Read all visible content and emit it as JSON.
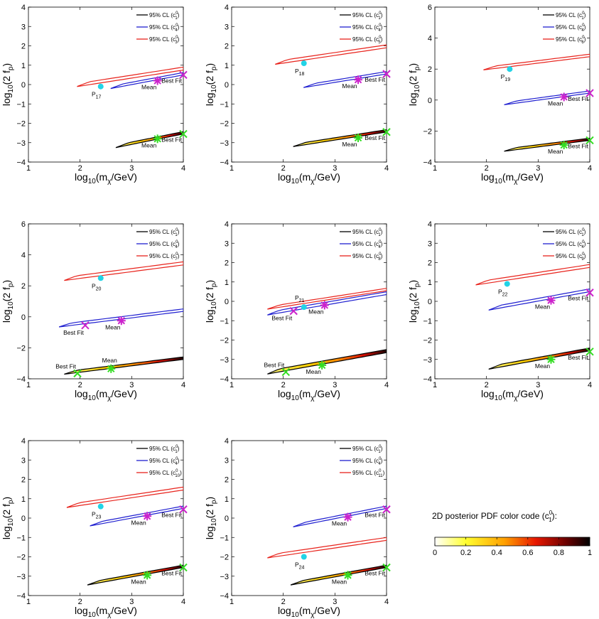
{
  "figure": {
    "colors": {
      "black_contour": "#000000",
      "blue_contour": "#1f1fd0",
      "red_contour": "#e8231c",
      "benchmark_point": "#22d3e6",
      "best_fit_marker": "#cc22cc",
      "mean_marker": "#33dd22"
    },
    "colorbar": {
      "title": "2D posterior PDF color code (c",
      "title_sup": "0",
      "title_sub": "1",
      "title_end": "):",
      "ticks": [
        "0",
        "0.2",
        "0.4",
        "0.6",
        "0.8",
        "1"
      ]
    }
  },
  "chart_data": [
    {
      "type": "contour",
      "xlabel": "log10(m_χ/GeV)",
      "ylabel": "log10(2 f_p)",
      "xlim": [
        1,
        4
      ],
      "ylim": [
        -4,
        4
      ],
      "xticks": [
        "1",
        "2",
        "3",
        "4"
      ],
      "yticks": [
        "-4",
        "-3",
        "-2",
        "-1",
        "0",
        "1",
        "2",
        "3",
        "4"
      ],
      "legend": [
        {
          "label": "95% CL (c",
          "sup": "0",
          "sub": "1",
          "color": "#000000"
        },
        {
          "label": "95% CL (c",
          "sup": "0",
          "sub": "4",
          "color": "#1f1fd0"
        },
        {
          "label": "95% CL (c",
          "sup": "0",
          "sub": "3",
          "color": "#e8231c"
        }
      ],
      "benchmark": {
        "label": "P",
        "sub": "17",
        "x": 2.4,
        "y": -0.1
      },
      "contours": [
        {
          "operator": "c1",
          "x0": 2.7,
          "x1": 4.0,
          "y_start": -3.25,
          "y_end": -2.55,
          "width": 0.12,
          "filled": true,
          "best_fit": {
            "x": 4.0,
            "y": -2.55
          },
          "mean": {
            "x": 3.5,
            "y": -2.8
          }
        },
        {
          "operator": "c4",
          "x0": 2.6,
          "x1": 4.0,
          "y_start": -0.2,
          "y_end": 0.5,
          "width": 0.12,
          "filled": false,
          "best_fit": {
            "x": 4.0,
            "y": 0.5
          },
          "mean": {
            "x": 3.5,
            "y": 0.2
          }
        },
        {
          "operator": "c3",
          "x0": 1.95,
          "x1": 4.0,
          "y_start": -0.1,
          "y_end": 0.75,
          "width": 0.15,
          "filled": false
        }
      ]
    },
    {
      "type": "contour",
      "xlabel": "log10(m_χ/GeV)",
      "ylabel": "log10(2 f_p)",
      "xlim": [
        1,
        4
      ],
      "ylim": [
        -4,
        4
      ],
      "xticks": [
        "1",
        "2",
        "3",
        "4"
      ],
      "yticks": [
        "-4",
        "-3",
        "-2",
        "-1",
        "0",
        "1",
        "2",
        "3",
        "4"
      ],
      "legend": [
        {
          "label": "95% CL (c",
          "sup": "0",
          "sub": "1",
          "color": "#000000"
        },
        {
          "label": "95% CL (c",
          "sup": "0",
          "sub": "4",
          "color": "#1f1fd0"
        },
        {
          "label": "95% CL (c",
          "sup": "0",
          "sub": "5",
          "color": "#e8231c"
        }
      ],
      "benchmark": {
        "label": "P",
        "sub": "18",
        "x": 2.4,
        "y": 1.1
      },
      "contours": [
        {
          "operator": "c1",
          "x0": 2.2,
          "x1": 4.0,
          "y_start": -3.2,
          "y_end": -2.45,
          "width": 0.12,
          "filled": true,
          "best_fit": {
            "x": 4.0,
            "y": -2.45
          },
          "mean": {
            "x": 3.45,
            "y": -2.75
          }
        },
        {
          "operator": "c4",
          "x0": 2.4,
          "x1": 4.0,
          "y_start": -0.15,
          "y_end": 0.55,
          "width": 0.12,
          "filled": false,
          "best_fit": {
            "x": 4.0,
            "y": 0.55
          },
          "mean": {
            "x": 3.45,
            "y": 0.25
          }
        },
        {
          "operator": "c5",
          "x0": 1.85,
          "x1": 4.0,
          "y_start": 1.05,
          "y_end": 1.9,
          "width": 0.15,
          "filled": false
        }
      ]
    },
    {
      "type": "contour",
      "xlabel": "log10(m_χ/GeV)",
      "ylabel": "log10(2 f_p)",
      "xlim": [
        1,
        4
      ],
      "ylim": [
        -4,
        6
      ],
      "xticks": [
        "1",
        "2",
        "3",
        "4"
      ],
      "yticks": [
        "-4",
        "-2",
        "0",
        "2",
        "4",
        "6"
      ],
      "legend": [
        {
          "label": "95% CL (c",
          "sup": "0",
          "sub": "1",
          "color": "#000000"
        },
        {
          "label": "95% CL (c",
          "sup": "0",
          "sub": "4",
          "color": "#1f1fd0"
        },
        {
          "label": "95% CL (c",
          "sup": "0",
          "sub": "6",
          "color": "#e8231c"
        }
      ],
      "benchmark": {
        "label": "P",
        "sub": "19",
        "x": 2.45,
        "y": 2.0
      },
      "contours": [
        {
          "operator": "c1",
          "x0": 2.35,
          "x1": 4.0,
          "y_start": -3.3,
          "y_end": -2.6,
          "width": 0.14,
          "filled": true,
          "best_fit": {
            "x": 4.0,
            "y": -2.6
          },
          "mean": {
            "x": 3.5,
            "y": -2.9
          }
        },
        {
          "operator": "c4",
          "x0": 2.35,
          "x1": 4.0,
          "y_start": -0.3,
          "y_end": 0.45,
          "width": 0.14,
          "filled": false,
          "best_fit": {
            "x": 4.0,
            "y": 0.45
          },
          "mean": {
            "x": 3.5,
            "y": 0.2
          }
        },
        {
          "operator": "c6",
          "x0": 1.95,
          "x1": 4.0,
          "y_start": 1.95,
          "y_end": 2.8,
          "width": 0.16,
          "filled": false
        }
      ]
    },
    {
      "type": "contour",
      "xlabel": "log10(m_χ/GeV)",
      "ylabel": "log10(2 f_p)",
      "xlim": [
        1,
        4
      ],
      "ylim": [
        -4,
        6
      ],
      "xticks": [
        "1",
        "2",
        "3",
        "4"
      ],
      "yticks": [
        "-4",
        "-2",
        "0",
        "2",
        "4",
        "6"
      ],
      "legend": [
        {
          "label": "95% CL (c",
          "sup": "0",
          "sub": "1",
          "color": "#000000"
        },
        {
          "label": "95% CL (c",
          "sup": "0",
          "sub": "4",
          "color": "#1f1fd0"
        },
        {
          "label": "95% CL (c",
          "sup": "0",
          "sub": "7",
          "color": "#e8231c"
        }
      ],
      "benchmark": {
        "label": "P",
        "sub": "20",
        "x": 2.4,
        "y": 2.5
      },
      "contours": [
        {
          "operator": "c1",
          "x0": 1.7,
          "x1": 4.0,
          "y_start": -3.7,
          "y_end": -2.75,
          "width": 0.16,
          "filled": true,
          "best_fit": {
            "x": 1.95,
            "y": -3.65
          },
          "mean": {
            "x": 2.6,
            "y": -3.35
          },
          "bf_label_pos": "upper-left",
          "mean_label_pos": "above"
        },
        {
          "operator": "c4",
          "x0": 1.6,
          "x1": 4.0,
          "y_start": -0.65,
          "y_end": 0.35,
          "width": 0.16,
          "filled": false,
          "best_fit": {
            "x": 2.1,
            "y": -0.55
          },
          "mean": {
            "x": 2.8,
            "y": -0.25
          },
          "bf_label_pos": "below-left",
          "mean_label_pos": "below"
        },
        {
          "operator": "c7",
          "x0": 1.7,
          "x1": 4.0,
          "y_start": 2.35,
          "y_end": 3.35,
          "width": 0.2,
          "filled": false
        }
      ]
    },
    {
      "type": "contour",
      "xlabel": "log10(m_χ/GeV)",
      "ylabel": "log10(2 f_p)",
      "xlim": [
        1,
        4
      ],
      "ylim": [
        -4,
        4
      ],
      "xticks": [
        "1",
        "2",
        "3",
        "4"
      ],
      "yticks": [
        "-4",
        "-3",
        "-2",
        "-1",
        "0",
        "1",
        "2",
        "3",
        "4"
      ],
      "legend": [
        {
          "label": "95% CL (c",
          "sup": "0",
          "sub": "1",
          "color": "#000000"
        },
        {
          "label": "95% CL (c",
          "sup": "0",
          "sub": "4",
          "color": "#1f1fd0"
        },
        {
          "label": "95% CL (c",
          "sup": "0",
          "sub": "8",
          "color": "#e8231c"
        }
      ],
      "benchmark": {
        "label": "P",
        "sub": "21",
        "x": 2.4,
        "y": -0.3,
        "label_above": true
      },
      "contours": [
        {
          "operator": "c1",
          "x0": 1.7,
          "x1": 4.0,
          "y_start": -3.75,
          "y_end": -2.65,
          "width": 0.16,
          "filled": true,
          "best_fit": {
            "x": 2.05,
            "y": -3.65
          },
          "mean": {
            "x": 2.75,
            "y": -3.3
          },
          "bf_label_pos": "upper-left",
          "mean_label_pos": "below"
        },
        {
          "operator": "c4",
          "x0": 1.7,
          "x1": 4.0,
          "y_start": -0.7,
          "y_end": 0.35,
          "width": 0.14,
          "filled": false,
          "best_fit": {
            "x": 2.2,
            "y": -0.5
          },
          "mean": {
            "x": 2.8,
            "y": -0.2
          },
          "bf_label_pos": "below-left",
          "mean_label_pos": "below"
        },
        {
          "operator": "c8",
          "x0": 1.7,
          "x1": 4.0,
          "y_start": -0.4,
          "y_end": 0.55,
          "width": 0.12,
          "filled": false
        }
      ]
    },
    {
      "type": "contour",
      "xlabel": "log10(m_χ/GeV)",
      "ylabel": "log10(2 f_p)",
      "xlim": [
        1,
        4
      ],
      "ylim": [
        -4,
        4
      ],
      "xticks": [
        "1",
        "2",
        "3",
        "4"
      ],
      "yticks": [
        "-4",
        "-3",
        "-2",
        "-1",
        "0",
        "1",
        "2",
        "3",
        "4"
      ],
      "legend": [
        {
          "label": "95% CL (c",
          "sup": "0",
          "sub": "1",
          "color": "#000000"
        },
        {
          "label": "95% CL (c",
          "sup": "0",
          "sub": "4",
          "color": "#1f1fd0"
        },
        {
          "label": "95% CL (c",
          "sup": "0",
          "sub": "9",
          "color": "#e8231c"
        }
      ],
      "benchmark": {
        "label": "P",
        "sub": "22",
        "x": 2.4,
        "y": 0.9
      },
      "contours": [
        {
          "operator": "c1",
          "x0": 2.05,
          "x1": 4.0,
          "y_start": -3.5,
          "y_end": -2.55,
          "width": 0.14,
          "filled": true,
          "best_fit": {
            "x": 4.0,
            "y": -2.6
          },
          "mean": {
            "x": 3.25,
            "y": -3.0
          }
        },
        {
          "operator": "c4",
          "x0": 2.05,
          "x1": 4.0,
          "y_start": -0.45,
          "y_end": 0.5,
          "width": 0.14,
          "filled": false,
          "best_fit": {
            "x": 4.0,
            "y": 0.45
          },
          "mean": {
            "x": 3.25,
            "y": 0.05
          }
        },
        {
          "operator": "c9",
          "x0": 1.8,
          "x1": 4.0,
          "y_start": 0.85,
          "y_end": 1.75,
          "width": 0.15,
          "filled": false
        }
      ]
    },
    {
      "type": "contour",
      "xlabel": "log10(m_χ/GeV)",
      "ylabel": "log10(2 f_p)",
      "xlim": [
        1,
        4
      ],
      "ylim": [
        -4,
        4
      ],
      "xticks": [
        "1",
        "2",
        "3",
        "4"
      ],
      "yticks": [
        "-4",
        "-3",
        "-2",
        "-1",
        "0",
        "1",
        "2",
        "3",
        "4"
      ],
      "legend": [
        {
          "label": "95% CL (c",
          "sup": "0",
          "sub": "1",
          "color": "#000000"
        },
        {
          "label": "95% CL (c",
          "sup": "0",
          "sub": "4",
          "color": "#1f1fd0"
        },
        {
          "label": "95% CL (c",
          "sup": "0",
          "sub": "10",
          "color": "#e8231c"
        }
      ],
      "benchmark": {
        "label": "P",
        "sub": "23",
        "x": 2.4,
        "y": 0.6
      },
      "contours": [
        {
          "operator": "c1",
          "x0": 2.15,
          "x1": 4.0,
          "y_start": -3.45,
          "y_end": -2.55,
          "width": 0.12,
          "filled": true,
          "best_fit": {
            "x": 4.0,
            "y": -2.55
          },
          "mean": {
            "x": 3.3,
            "y": -2.95
          }
        },
        {
          "operator": "c4",
          "x0": 2.2,
          "x1": 4.0,
          "y_start": -0.4,
          "y_end": 0.5,
          "width": 0.12,
          "filled": false,
          "best_fit": {
            "x": 4.0,
            "y": 0.45
          },
          "mean": {
            "x": 3.3,
            "y": 0.1
          }
        },
        {
          "operator": "c10",
          "x0": 1.75,
          "x1": 4.0,
          "y_start": 0.55,
          "y_end": 1.45,
          "width": 0.15,
          "filled": false
        }
      ]
    },
    {
      "type": "contour",
      "xlabel": "log10(m_χ/GeV)",
      "ylabel": "log10(2 f_p)",
      "xlim": [
        1,
        4
      ],
      "ylim": [
        -4,
        4
      ],
      "xticks": [
        "1",
        "2",
        "3",
        "4"
      ],
      "yticks": [
        "-4",
        "-3",
        "-2",
        "-1",
        "0",
        "1",
        "2",
        "3",
        "4"
      ],
      "legend": [
        {
          "label": "95% CL (c",
          "sup": "0",
          "sub": "1",
          "color": "#000000"
        },
        {
          "label": "95% CL (c",
          "sup": "0",
          "sub": "4",
          "color": "#1f1fd0"
        },
        {
          "label": "95% CL (c",
          "sup": "0",
          "sub": "11",
          "color": "#e8231c"
        }
      ],
      "benchmark": {
        "label": "P",
        "sub": "24",
        "x": 2.4,
        "y": -2.0
      },
      "contours": [
        {
          "operator": "c1",
          "x0": 2.15,
          "x1": 4.0,
          "y_start": -3.45,
          "y_end": -2.55,
          "width": 0.12,
          "filled": true,
          "best_fit": {
            "x": 4.0,
            "y": -2.55
          },
          "mean": {
            "x": 3.25,
            "y": -2.95
          }
        },
        {
          "operator": "c4",
          "x0": 2.2,
          "x1": 4.0,
          "y_start": -0.45,
          "y_end": 0.5,
          "width": 0.12,
          "filled": false,
          "best_fit": {
            "x": 4.0,
            "y": 0.45
          },
          "mean": {
            "x": 3.25,
            "y": 0.05
          }
        },
        {
          "operator": "c11",
          "x0": 1.7,
          "x1": 4.0,
          "y_start": -2.05,
          "y_end": -1.15,
          "width": 0.15,
          "filled": false
        }
      ]
    }
  ]
}
